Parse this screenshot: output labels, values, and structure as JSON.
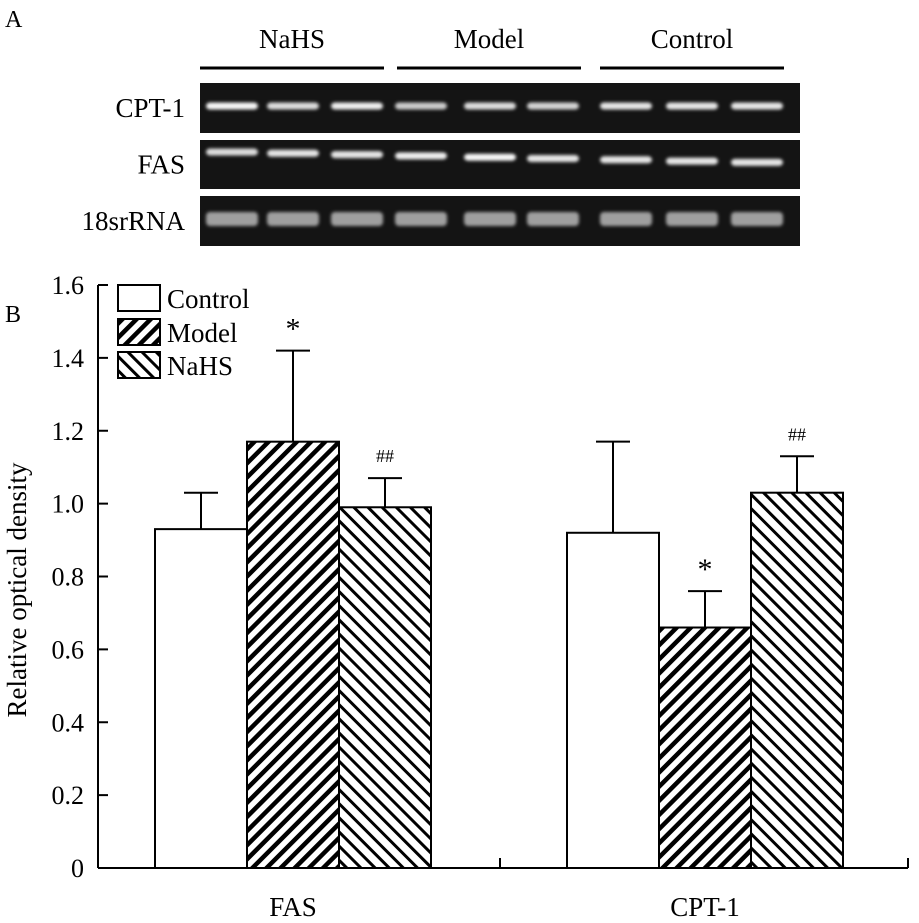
{
  "panel_a": {
    "label": "A",
    "groups": [
      "NaHS",
      "Model",
      "Control"
    ],
    "rows": [
      {
        "name": "CPT-1",
        "bands": [
          0.95,
          0.8,
          0.9,
          0.7,
          0.8,
          0.75,
          0.85,
          0.85,
          0.85
        ]
      },
      {
        "name": "FAS",
        "bands": [
          0.8,
          0.85,
          0.85,
          0.9,
          0.95,
          0.85,
          0.85,
          0.85,
          0.85
        ]
      },
      {
        "name": "18srRNA",
        "bands": [
          0.45,
          0.45,
          0.45,
          0.45,
          0.45,
          0.45,
          0.45,
          0.45,
          0.45
        ]
      }
    ]
  },
  "chart_data": {
    "type": "bar",
    "panel_label": "B",
    "ylabel": "Relative optical density",
    "xlabel": "",
    "ylim": [
      0,
      1.6
    ],
    "yticks": [
      "0",
      "0.2",
      "0.4",
      "0.6",
      "0.8",
      "1.0",
      "1.2",
      "1.4",
      "1.6"
    ],
    "categories": [
      "FAS",
      "CPT-1"
    ],
    "legend_position": "top-left",
    "grid": false,
    "series": [
      {
        "name": "Control",
        "pattern": "none",
        "values": [
          0.93,
          0.92
        ],
        "errors": [
          0.1,
          0.25
        ],
        "annotations": [
          "",
          ""
        ]
      },
      {
        "name": "Model",
        "pattern": "hatch-backslash",
        "values": [
          1.17,
          0.66
        ],
        "errors": [
          0.25,
          0.1
        ],
        "annotations": [
          "*",
          "*"
        ]
      },
      {
        "name": "NaHS",
        "pattern": "hatch-slash",
        "values": [
          0.99,
          1.03
        ],
        "errors": [
          0.08,
          0.1
        ],
        "annotations": [
          "##",
          "##"
        ]
      }
    ]
  }
}
